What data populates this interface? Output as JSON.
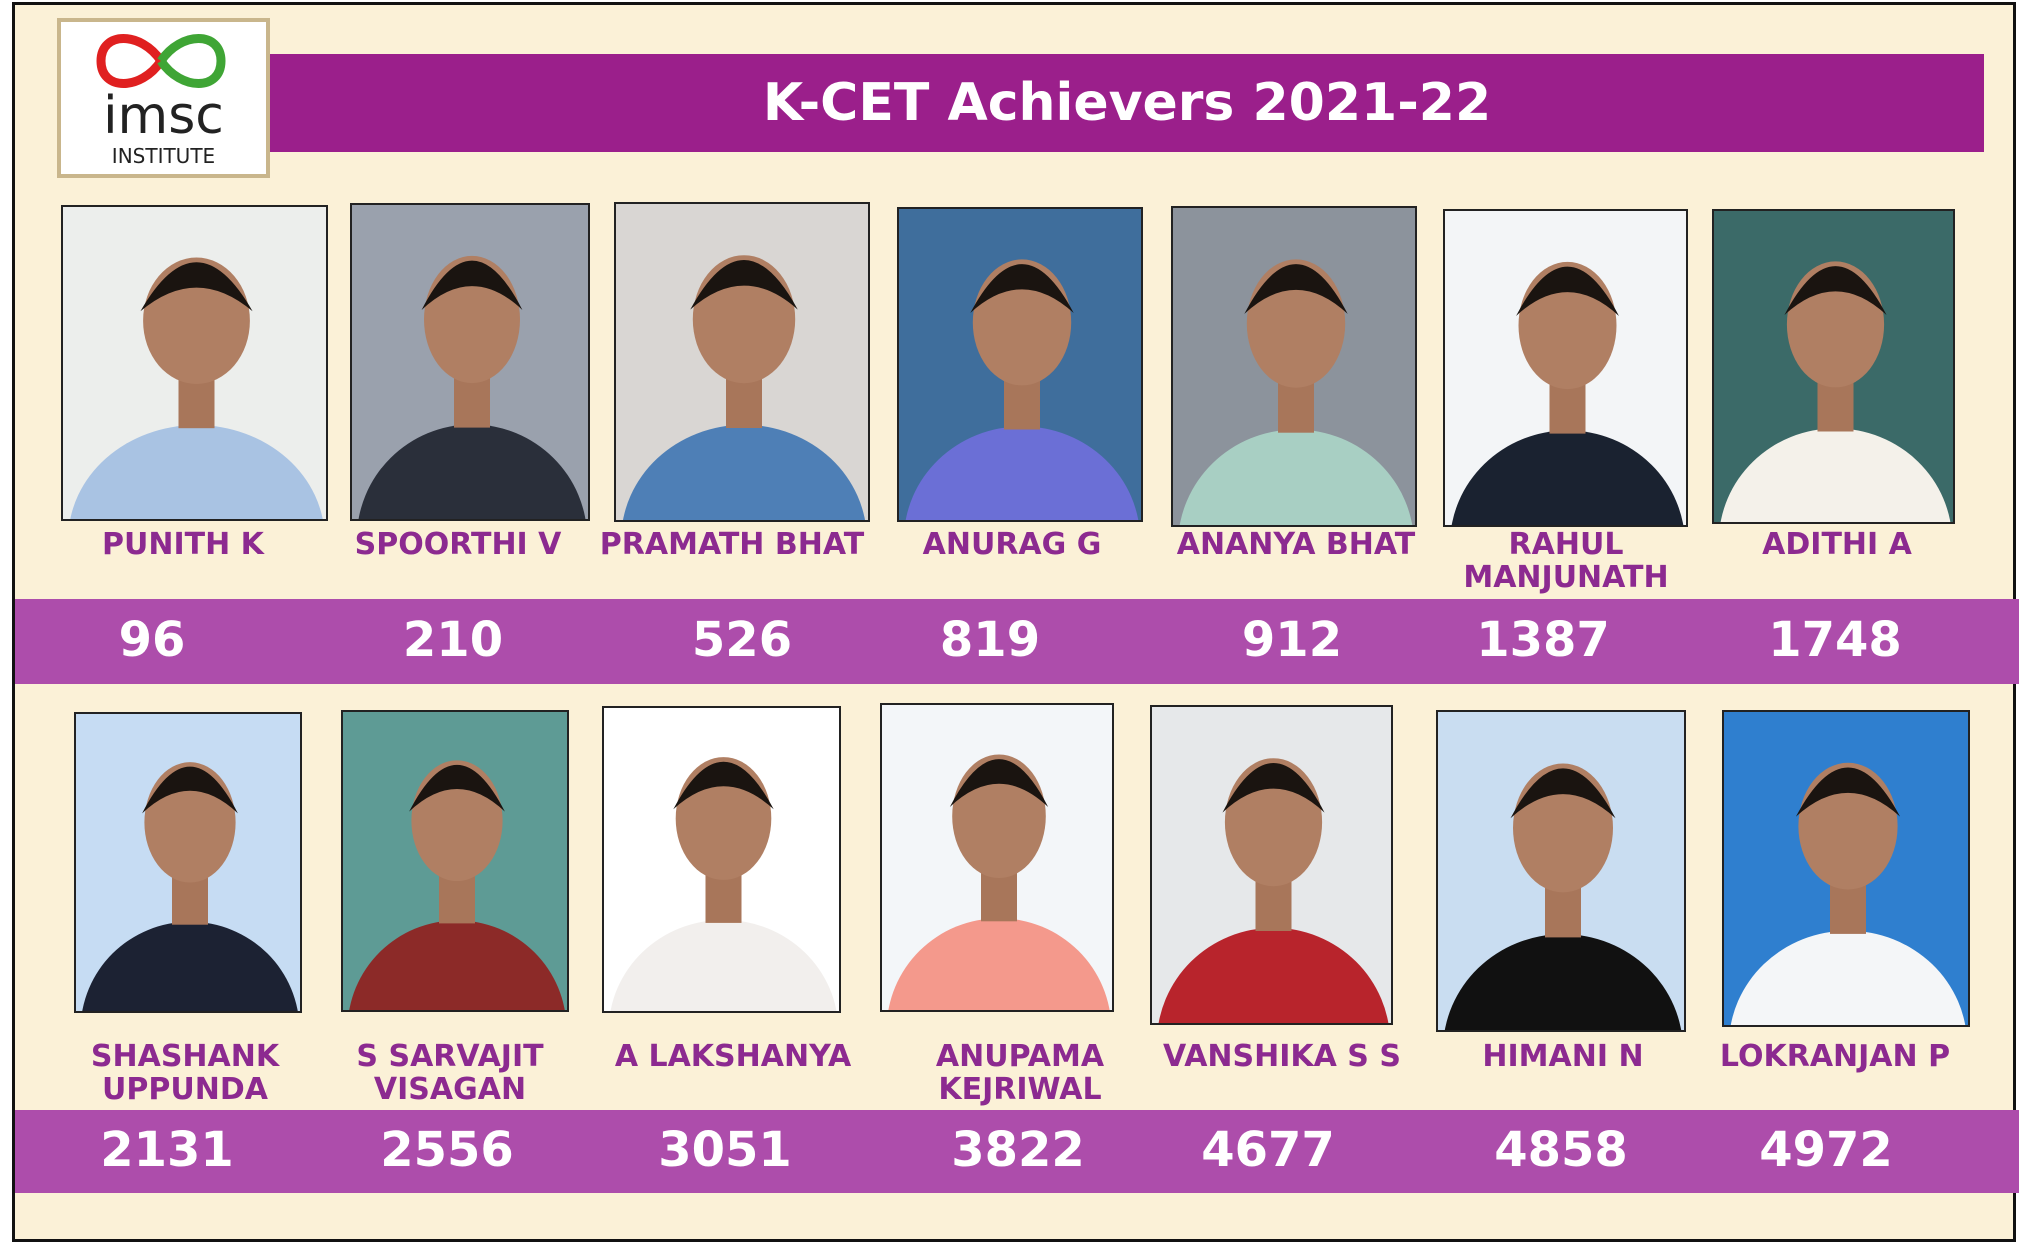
{
  "logo": {
    "name": "imsc",
    "subtitle": "INSTITUTE"
  },
  "title": "K-CET Achievers 2021-22",
  "rows": [
    [
      {
        "name": "PUNITH K",
        "rank": 96
      },
      {
        "name": "SPOORTHI V",
        "rank": 210
      },
      {
        "name": "PRAMATH BHAT",
        "rank": 526
      },
      {
        "name": "ANURAG G",
        "rank": 819
      },
      {
        "name": "ANANYA BHAT",
        "rank": 912
      },
      {
        "name": "RAHUL MANJUNATH",
        "rank": 1387
      },
      {
        "name": "ADITHI A",
        "rank": 1748
      }
    ],
    [
      {
        "name": "SHASHANK UPPUNDA",
        "rank": 2131
      },
      {
        "name": "S SARVAJIT VISAGAN",
        "rank": 2556
      },
      {
        "name": "A LAKSHANYA",
        "rank": 3051
      },
      {
        "name": "ANUPAMA KEJRIWAL",
        "rank": 3822
      },
      {
        "name": "VANSHIKA S S",
        "rank": 4677
      },
      {
        "name": "HIMANI N",
        "rank": 4858
      },
      {
        "name": "LOKRANJAN P",
        "rank": 4972
      }
    ]
  ]
}
